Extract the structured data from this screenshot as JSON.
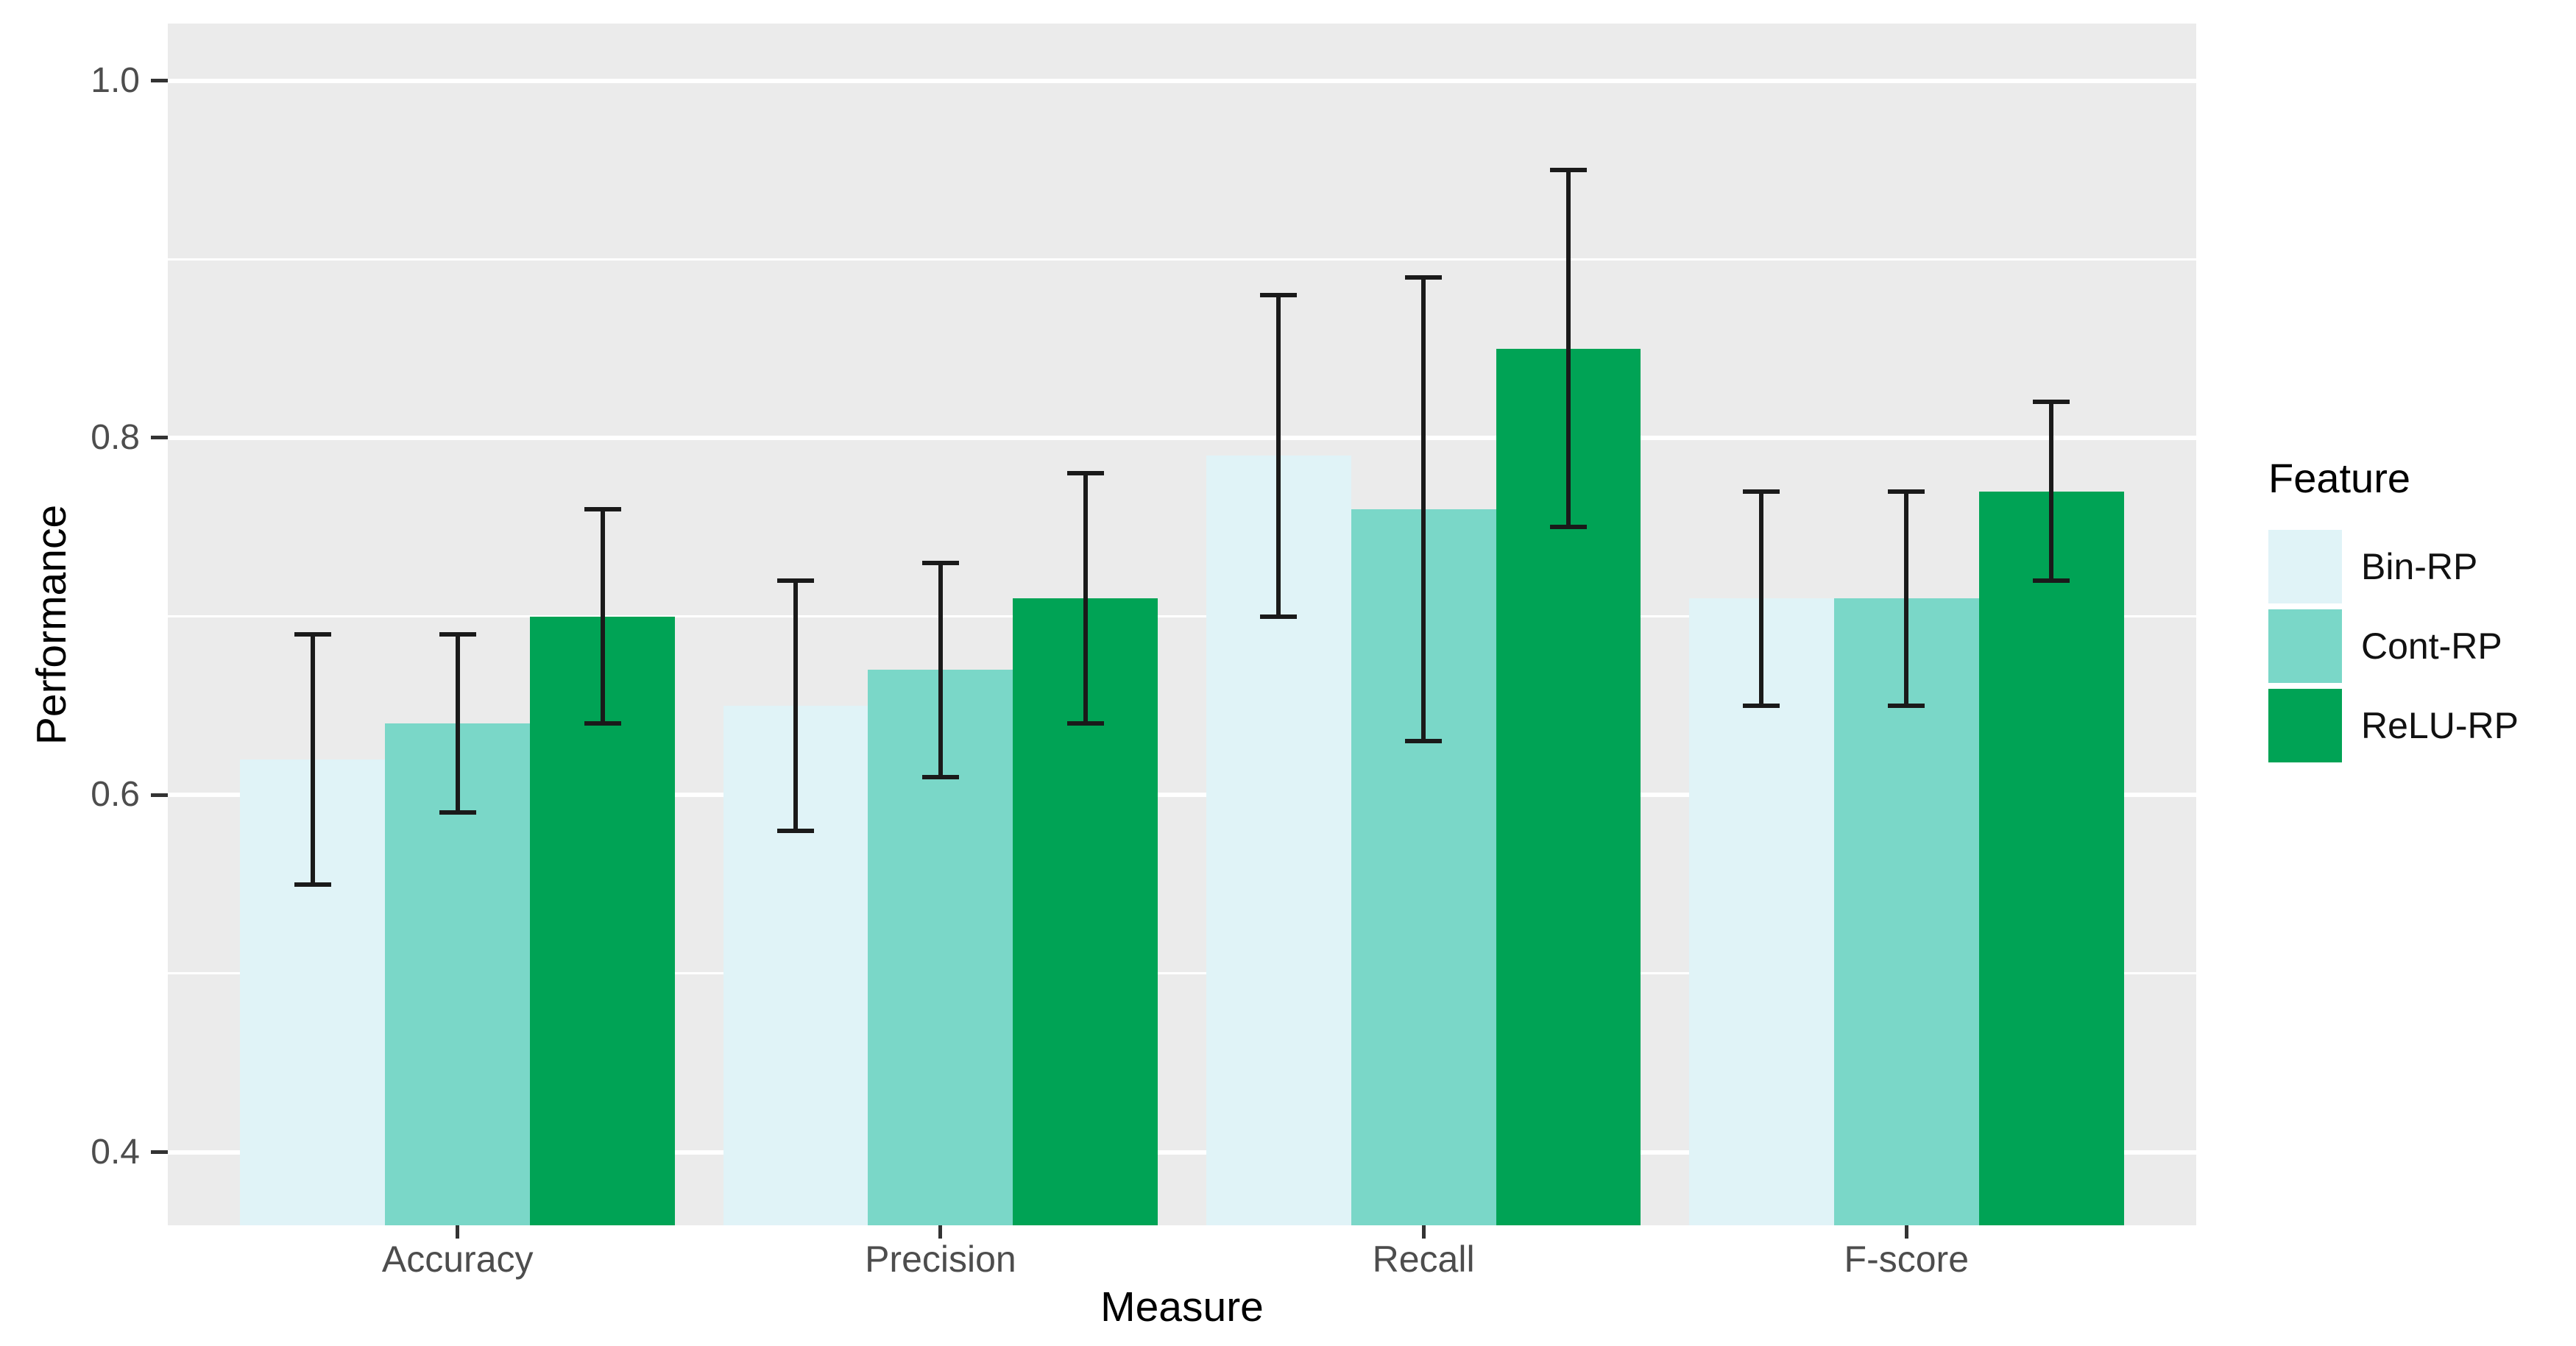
{
  "figure": {
    "y_axis": {
      "title": "Performance",
      "ticks": [
        "1.0",
        "0.8",
        "0.6",
        "0.4"
      ],
      "tick_values": [
        1.0,
        0.8,
        0.6,
        0.4
      ]
    },
    "x_axis": {
      "title": "Measure",
      "categories": [
        "Accuracy",
        "Precision",
        "Recall",
        "F-score"
      ]
    },
    "legend": {
      "title": "Feature",
      "items": [
        {
          "label": "Bin-RP",
          "color": "#E0F3F7"
        },
        {
          "label": "Cont-RP",
          "color": "#7AD7C8"
        },
        {
          "label": "ReLU-RP",
          "color": "#00A355"
        }
      ]
    }
  },
  "chart_data": {
    "type": "bar",
    "title": "",
    "xlabel": "Measure",
    "ylabel": "Performance",
    "legend_title": "Feature",
    "legend_position": "right",
    "grid": true,
    "categories": [
      "Accuracy",
      "Precision",
      "Recall",
      "F-score"
    ],
    "series": [
      {
        "name": "Bin-RP",
        "color": "#E0F3F7",
        "values": [
          0.62,
          0.65,
          0.79,
          0.71
        ],
        "error_low": [
          0.55,
          0.58,
          0.7,
          0.65
        ],
        "error_high": [
          0.69,
          0.72,
          0.88,
          0.77
        ]
      },
      {
        "name": "Cont-RP",
        "color": "#7AD7C8",
        "values": [
          0.64,
          0.67,
          0.76,
          0.71
        ],
        "error_low": [
          0.59,
          0.61,
          0.63,
          0.65
        ],
        "error_high": [
          0.69,
          0.73,
          0.89,
          0.77
        ]
      },
      {
        "name": "ReLU-RP",
        "color": "#00A355",
        "values": [
          0.7,
          0.71,
          0.85,
          0.77
        ],
        "error_low": [
          0.64,
          0.64,
          0.75,
          0.72
        ],
        "error_high": [
          0.76,
          0.78,
          0.95,
          0.82
        ]
      }
    ],
    "y_major_gridlines": [
      0.4,
      0.6,
      0.8,
      1.0
    ],
    "y_minor_gridlines": [
      0.5,
      0.7,
      0.9
    ],
    "ylim": [
      0.359,
      1.032
    ],
    "colors": {
      "panel_background": "#EBEBEB",
      "gridline": "#FFFFFF",
      "error_bar": "#1A1A1A",
      "tick_label": "#4D4D4D",
      "tick_mark": "#333333",
      "axis_title": "#000000"
    }
  }
}
